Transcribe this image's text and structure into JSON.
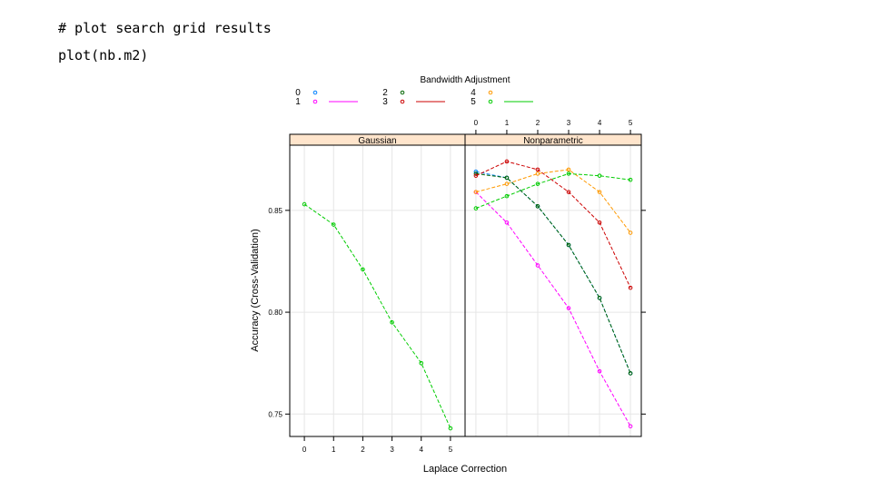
{
  "code": {
    "line1": "# plot search grid results",
    "line2": "plot(nb.m2)"
  },
  "chart_data": {
    "type": "line",
    "xlabel": "Laplace Correction",
    "ylabel": "Accuracy (Cross-Validation)",
    "legend": {
      "title": "Bandwidth Adjustment",
      "placement": "top",
      "entries": [
        {
          "label": "0",
          "color": "#0080ff",
          "line": false
        },
        {
          "label": "1",
          "color": "#ff00ff",
          "line": true
        },
        {
          "label": "2",
          "color": "#006400",
          "line": false
        },
        {
          "label": "3",
          "color": "#cc0000",
          "line": true
        },
        {
          "label": "4",
          "color": "#ff9900",
          "line": false
        },
        {
          "label": "5",
          "color": "#00cc00",
          "line": true
        }
      ]
    },
    "ylim": [
      0.739,
      0.882
    ],
    "yticks": [
      0.75,
      0.8,
      0.85
    ],
    "ytick_labels": [
      "0.75",
      "0.80",
      "0.85"
    ],
    "grid": true,
    "panels": [
      {
        "title": "Gaussian",
        "xlim": [
          -0.5,
          5.5
        ],
        "xticks": [
          0,
          1,
          2,
          3,
          4,
          5
        ],
        "xtick_labels": [
          "0",
          "1",
          "2",
          "3",
          "4",
          "5"
        ],
        "xtick_side": "bottom",
        "series": [
          {
            "color": "#00cc00",
            "x": [
              0,
              1,
              2,
              3,
              4,
              5
            ],
            "y": [
              0.853,
              0.843,
              0.821,
              0.795,
              0.775,
              0.743
            ]
          }
        ]
      },
      {
        "title": "Nonparametric",
        "xlim": [
          -0.35,
          5.35
        ],
        "xticks": [
          0,
          1,
          2,
          3,
          4,
          5
        ],
        "xtick_labels": [
          "0",
          "1",
          "2",
          "3",
          "4",
          "5"
        ],
        "xtick_side": "top",
        "series": [
          {
            "color": "#0080ff",
            "x": [
              0,
              1,
              2,
              3,
              4,
              5
            ],
            "y": [
              0.869,
              0.866,
              0.852,
              0.833,
              0.807,
              0.77
            ]
          },
          {
            "color": "#ff00ff",
            "x": [
              0,
              1,
              2,
              3,
              4,
              5
            ],
            "y": [
              0.859,
              0.844,
              0.823,
              0.802,
              0.771,
              0.744
            ]
          },
          {
            "color": "#006400",
            "x": [
              0,
              1,
              2,
              3,
              4,
              5
            ],
            "y": [
              0.868,
              0.866,
              0.852,
              0.833,
              0.807,
              0.77
            ]
          },
          {
            "color": "#cc0000",
            "x": [
              0,
              1,
              2,
              3,
              4,
              5
            ],
            "y": [
              0.867,
              0.874,
              0.87,
              0.859,
              0.844,
              0.812
            ]
          },
          {
            "color": "#ff9900",
            "x": [
              0,
              1,
              2,
              3,
              4,
              5
            ],
            "y": [
              0.859,
              0.863,
              0.868,
              0.87,
              0.859,
              0.839
            ]
          },
          {
            "color": "#00cc00",
            "x": [
              0,
              1,
              2,
              3,
              4,
              5
            ],
            "y": [
              0.851,
              0.857,
              0.863,
              0.868,
              0.867,
              0.865
            ]
          }
        ]
      }
    ]
  }
}
